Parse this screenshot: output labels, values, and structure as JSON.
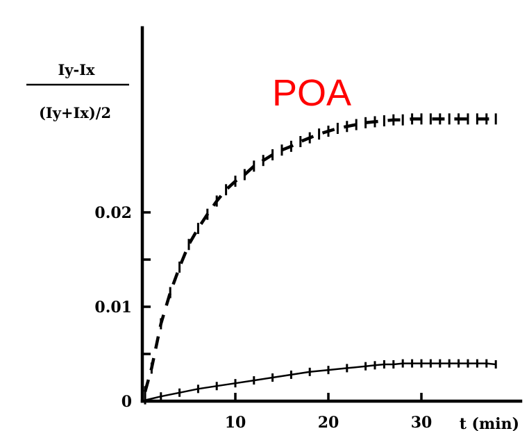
{
  "chart_data": {
    "type": "line",
    "title": "",
    "annotation": "POA",
    "annotation_color": "#ff0000",
    "ylabel_numerator": "Iy-Ix",
    "ylabel_denominator": "(Iy+Ix)/2",
    "xlabel": "t (min)",
    "xlim": [
      0,
      40
    ],
    "ylim": [
      0,
      0.04
    ],
    "x_ticks": [
      10,
      20,
      30
    ],
    "x_tick_labels": [
      "10",
      "20",
      "30"
    ],
    "y_ticks": [
      0,
      0.005,
      0.01,
      0.015,
      0.02
    ],
    "y_tick_labels": [
      "0",
      "",
      "0.01",
      "",
      "0.02"
    ],
    "grid": false,
    "series": [
      {
        "style": "dashed",
        "x": [
          0.3,
          1,
          2,
          3,
          4,
          5,
          6,
          7,
          8,
          9,
          10,
          11,
          12,
          13,
          14,
          15,
          16,
          17,
          18,
          19,
          20,
          21,
          22,
          23,
          24,
          25,
          26,
          27,
          28,
          29,
          30,
          31,
          32,
          33,
          34,
          35,
          36,
          37,
          38
        ],
        "y": [
          0.001,
          0.0035,
          0.0082,
          0.0115,
          0.0142,
          0.0166,
          0.0183,
          0.0198,
          0.0212,
          0.0224,
          0.0233,
          0.024,
          0.0249,
          0.0255,
          0.0261,
          0.0266,
          0.027,
          0.0275,
          0.0279,
          0.0283,
          0.0286,
          0.0289,
          0.0291,
          0.0293,
          0.0295,
          0.0296,
          0.0297,
          0.0298,
          0.0298,
          0.0299,
          0.0299,
          0.0299,
          0.0299,
          0.0299,
          0.0299,
          0.0299,
          0.0299,
          0.0299,
          0.0299
        ]
      },
      {
        "style": "solid",
        "x": [
          0.3,
          2,
          4,
          6,
          8,
          10,
          12,
          14,
          16,
          18,
          20,
          22,
          24,
          25,
          26,
          27,
          28,
          29,
          30,
          31,
          32,
          33,
          34,
          35,
          36,
          37,
          38
        ],
        "y": [
          0.0001,
          0.0005,
          0.0009,
          0.0013,
          0.0016,
          0.0019,
          0.0022,
          0.0025,
          0.0028,
          0.0031,
          0.0033,
          0.0035,
          0.0037,
          0.0038,
          0.0039,
          0.0039,
          0.004,
          0.004,
          0.004,
          0.004,
          0.004,
          0.004,
          0.004,
          0.004,
          0.004,
          0.004,
          0.0039
        ]
      }
    ]
  }
}
